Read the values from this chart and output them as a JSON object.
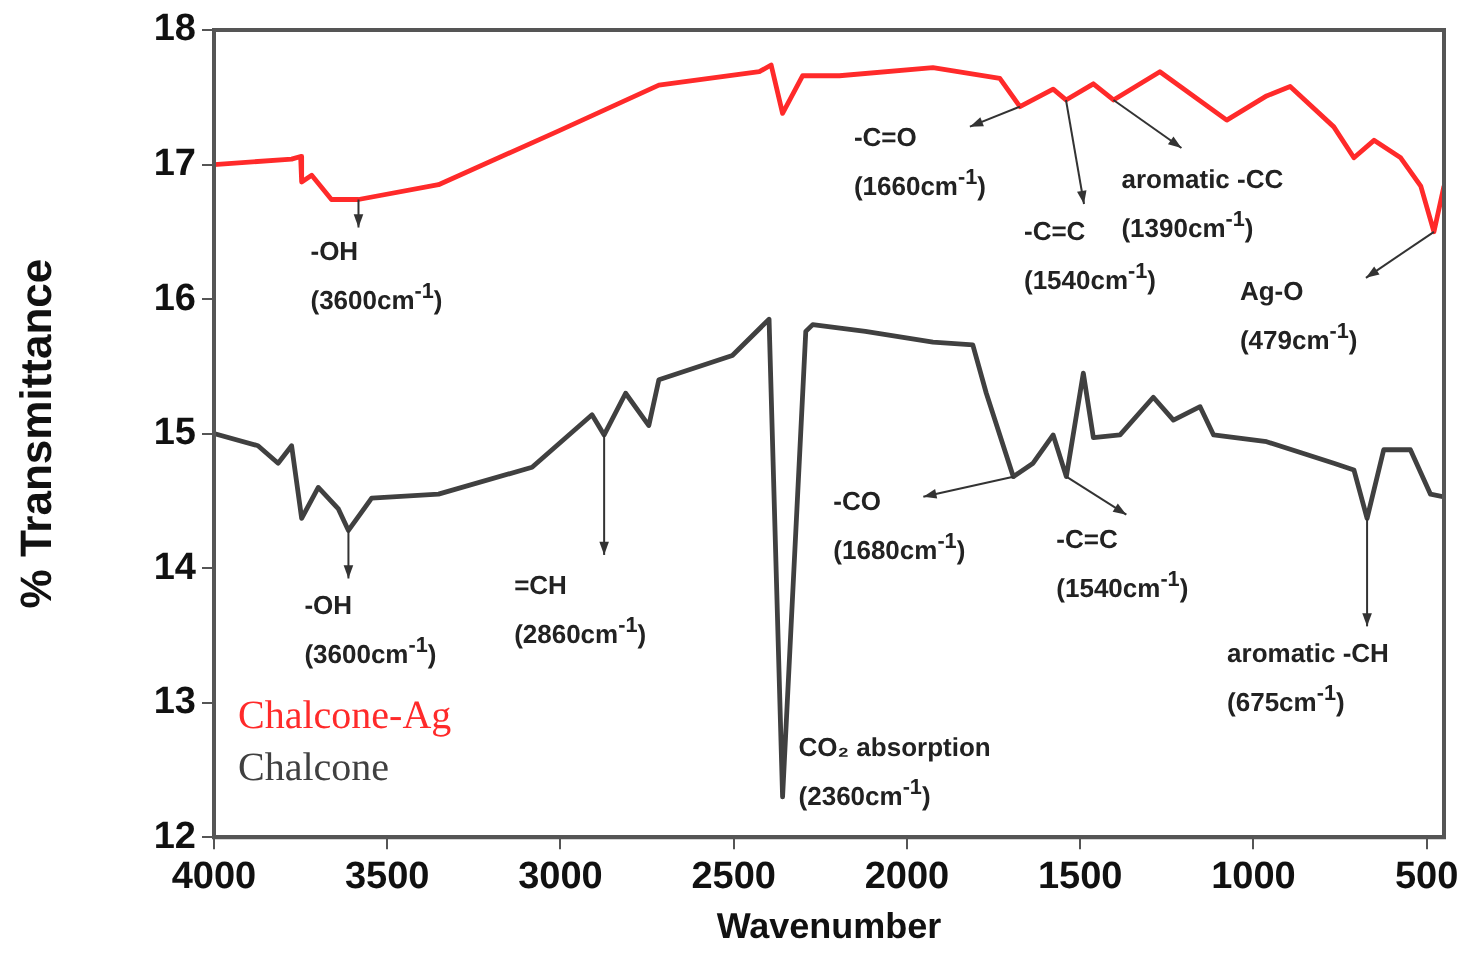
{
  "chart_data": {
    "type": "line",
    "xlabel": "Wavenumber",
    "ylabel": "% Transmittance",
    "xlim": [
      4000,
      450
    ],
    "xticks": [
      4000,
      3500,
      3000,
      2500,
      2000,
      1500,
      1000,
      500
    ],
    "ylim": [
      12,
      18
    ],
    "yticks": [
      12,
      13,
      14,
      15,
      16,
      17,
      18
    ],
    "grid": false,
    "legend": "bottom left",
    "marker": "none",
    "line_style": "solid",
    "series": [
      {
        "name": "Chalcone-Ag",
        "color": "#ff2a2a",
        "x": [
          4000,
          3776,
          3750,
          3747,
          3718,
          3661,
          3583,
          3352,
          3005,
          2716,
          2426,
          2392,
          2359,
          2301,
          2195,
          1925,
          1732,
          1674,
          1578,
          1541,
          1462,
          1404,
          1270,
          1077,
          962,
          894,
          768,
          710,
          652,
          575,
          517,
          479,
          450
        ],
        "values": [
          17.0,
          17.04,
          17.06,
          16.87,
          16.92,
          16.74,
          16.74,
          16.85,
          17.25,
          17.59,
          17.69,
          17.74,
          17.38,
          17.66,
          17.66,
          17.72,
          17.64,
          17.43,
          17.56,
          17.48,
          17.6,
          17.48,
          17.69,
          17.33,
          17.51,
          17.58,
          17.28,
          17.05,
          17.18,
          17.05,
          16.84,
          16.5,
          16.84
        ]
      },
      {
        "name": "Chalcone",
        "color": "#404040",
        "x": [
          4000,
          3873,
          3815,
          3776,
          3747,
          3699,
          3641,
          3612,
          3545,
          3352,
          3082,
          2909,
          2874,
          2812,
          2745,
          2716,
          2504,
          2398,
          2359,
          2292,
          2272,
          2120,
          1925,
          1810,
          1771,
          1693,
          1636,
          1578,
          1540,
          1491,
          1462,
          1385,
          1289,
          1231,
          1154,
          1115,
          962,
          768,
          710,
          672,
          624,
          547,
          489,
          450
        ],
        "values": [
          15.0,
          14.91,
          14.78,
          14.91,
          14.37,
          14.6,
          14.44,
          14.28,
          14.52,
          14.55,
          14.75,
          15.14,
          14.99,
          15.3,
          15.06,
          15.4,
          15.58,
          15.85,
          12.3,
          15.76,
          15.81,
          15.76,
          15.68,
          15.66,
          15.3,
          14.68,
          14.78,
          14.99,
          14.68,
          15.45,
          14.97,
          14.99,
          15.27,
          15.1,
          15.2,
          14.99,
          14.94,
          14.78,
          14.73,
          14.37,
          14.88,
          14.88,
          14.55,
          14.53
        ]
      }
    ],
    "annotations": [
      {
        "text": "-OH\n(3600cm$^{-1}$)",
        "x": 3583,
        "y": 16.74
      },
      {
        "text": "-C=O\n(1660cm$^{-1}$)",
        "x": 1674,
        "y": 17.43
      },
      {
        "text": "-C=C\n(1540cm$^{-1}$)",
        "x": 1541,
        "y": 17.48
      },
      {
        "text": "aromatic -CC\n(1390cm$^{-1}$)",
        "x": 1404,
        "y": 17.48
      },
      {
        "text": "Ag-O\n(479cm$^{-1}$)",
        "x": 479,
        "y": 16.5
      },
      {
        "text": "-OH\n(3600cm$^{-1}$)",
        "x": 3612,
        "y": 14.28
      },
      {
        "text": "=CH\n(2860cm$^{-1}$)",
        "x": 2874,
        "y": 14.99
      },
      {
        "text": "CO₂ absorption\n(2360cm$^{-1}$)",
        "x": 2359,
        "y": 12.3
      },
      {
        "text": "-CO\n(1680cm$^{-1}$)",
        "x": 1693,
        "y": 14.68
      },
      {
        "text": "-C=C\n(1540cm$^{-1}$)",
        "x": 1540,
        "y": 14.68
      },
      {
        "text": "aromatic -CH\n(675cm$^{-1}$)",
        "x": 672,
        "y": 14.37
      }
    ]
  }
}
